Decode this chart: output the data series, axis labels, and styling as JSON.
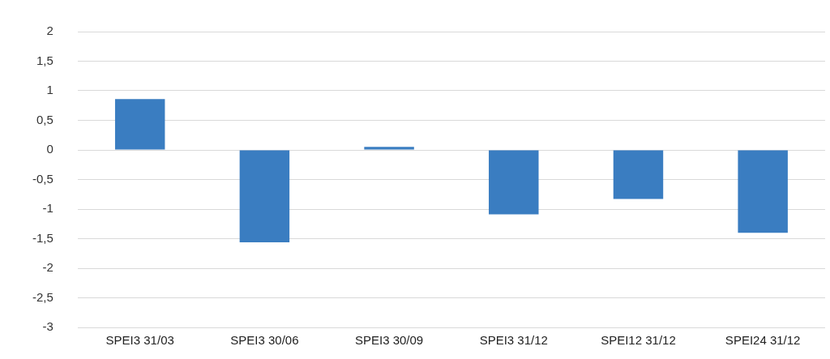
{
  "chart_data": {
    "type": "bar",
    "categories": [
      "SPEI3 31/03",
      "SPEI3 30/06",
      "SPEI3 30/09",
      "SPEI3 31/12",
      "SPEI12 31/12",
      "SPEI24 31/12"
    ],
    "values": [
      0.86,
      -1.56,
      0.05,
      -1.09,
      -0.83,
      -1.4
    ],
    "color": "#3a7dc1",
    "ylim": [
      -3,
      2
    ],
    "yticks": [
      -3,
      {
        "value": -2.5,
        "label": "-2,5"
      },
      -2,
      {
        "value": -1.5,
        "label": "-1,5"
      },
      -1,
      {
        "value": -0.5,
        "label": "-0,5"
      },
      0,
      {
        "value": 0.5,
        "label": "0,5"
      },
      1,
      {
        "value": 1.5,
        "label": "1,5"
      },
      2
    ],
    "grid": "y",
    "legend": false
  }
}
